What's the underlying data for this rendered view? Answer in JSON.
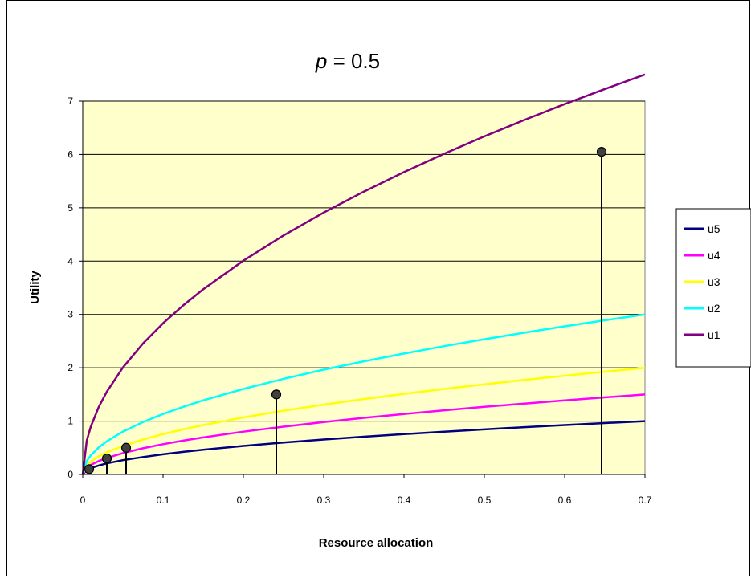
{
  "chart_data": {
    "type": "line",
    "title_var": "p",
    "title_rest": " = 0.5",
    "xlabel": "Resource allocation",
    "ylabel": "Utility",
    "xlim": [
      0,
      0.7
    ],
    "ylim": [
      0,
      7
    ],
    "x_ticks": [
      "0",
      "0.1",
      "0.2",
      "0.3",
      "0.4",
      "0.5",
      "0.6",
      "0.7"
    ],
    "y_ticks": [
      "0",
      "1",
      "2",
      "3",
      "4",
      "5",
      "6",
      "7"
    ],
    "grid": "horizontal",
    "legend_position": "right",
    "plot_background": "#ffffcc",
    "series": [
      {
        "name": "u5",
        "color": "#000080",
        "scale": 1.0
      },
      {
        "name": "u4",
        "color": "#ff00ff",
        "scale": 1.5
      },
      {
        "name": "u3",
        "color": "#ffff00",
        "scale": 2.0
      },
      {
        "name": "u2",
        "color": "#00ffff",
        "scale": 3.0
      },
      {
        "name": "u1",
        "color": "#800080",
        "scale": 7.5
      }
    ],
    "curve_x": [
      0,
      0.005,
      0.01,
      0.02,
      0.03,
      0.05,
      0.075,
      0.1,
      0.125,
      0.15,
      0.2,
      0.25,
      0.3,
      0.35,
      0.4,
      0.45,
      0.5,
      0.55,
      0.6,
      0.65,
      0.7
    ],
    "allocation_points": [
      {
        "series": "u5",
        "x": 0.008,
        "y": 0.1
      },
      {
        "series": "u4",
        "x": 0.03,
        "y": 0.3
      },
      {
        "series": "u3",
        "x": 0.054,
        "y": 0.5
      },
      {
        "series": "u2",
        "x": 0.241,
        "y": 1.5
      },
      {
        "series": "u1",
        "x": 0.646,
        "y": 6.05
      }
    ]
  }
}
